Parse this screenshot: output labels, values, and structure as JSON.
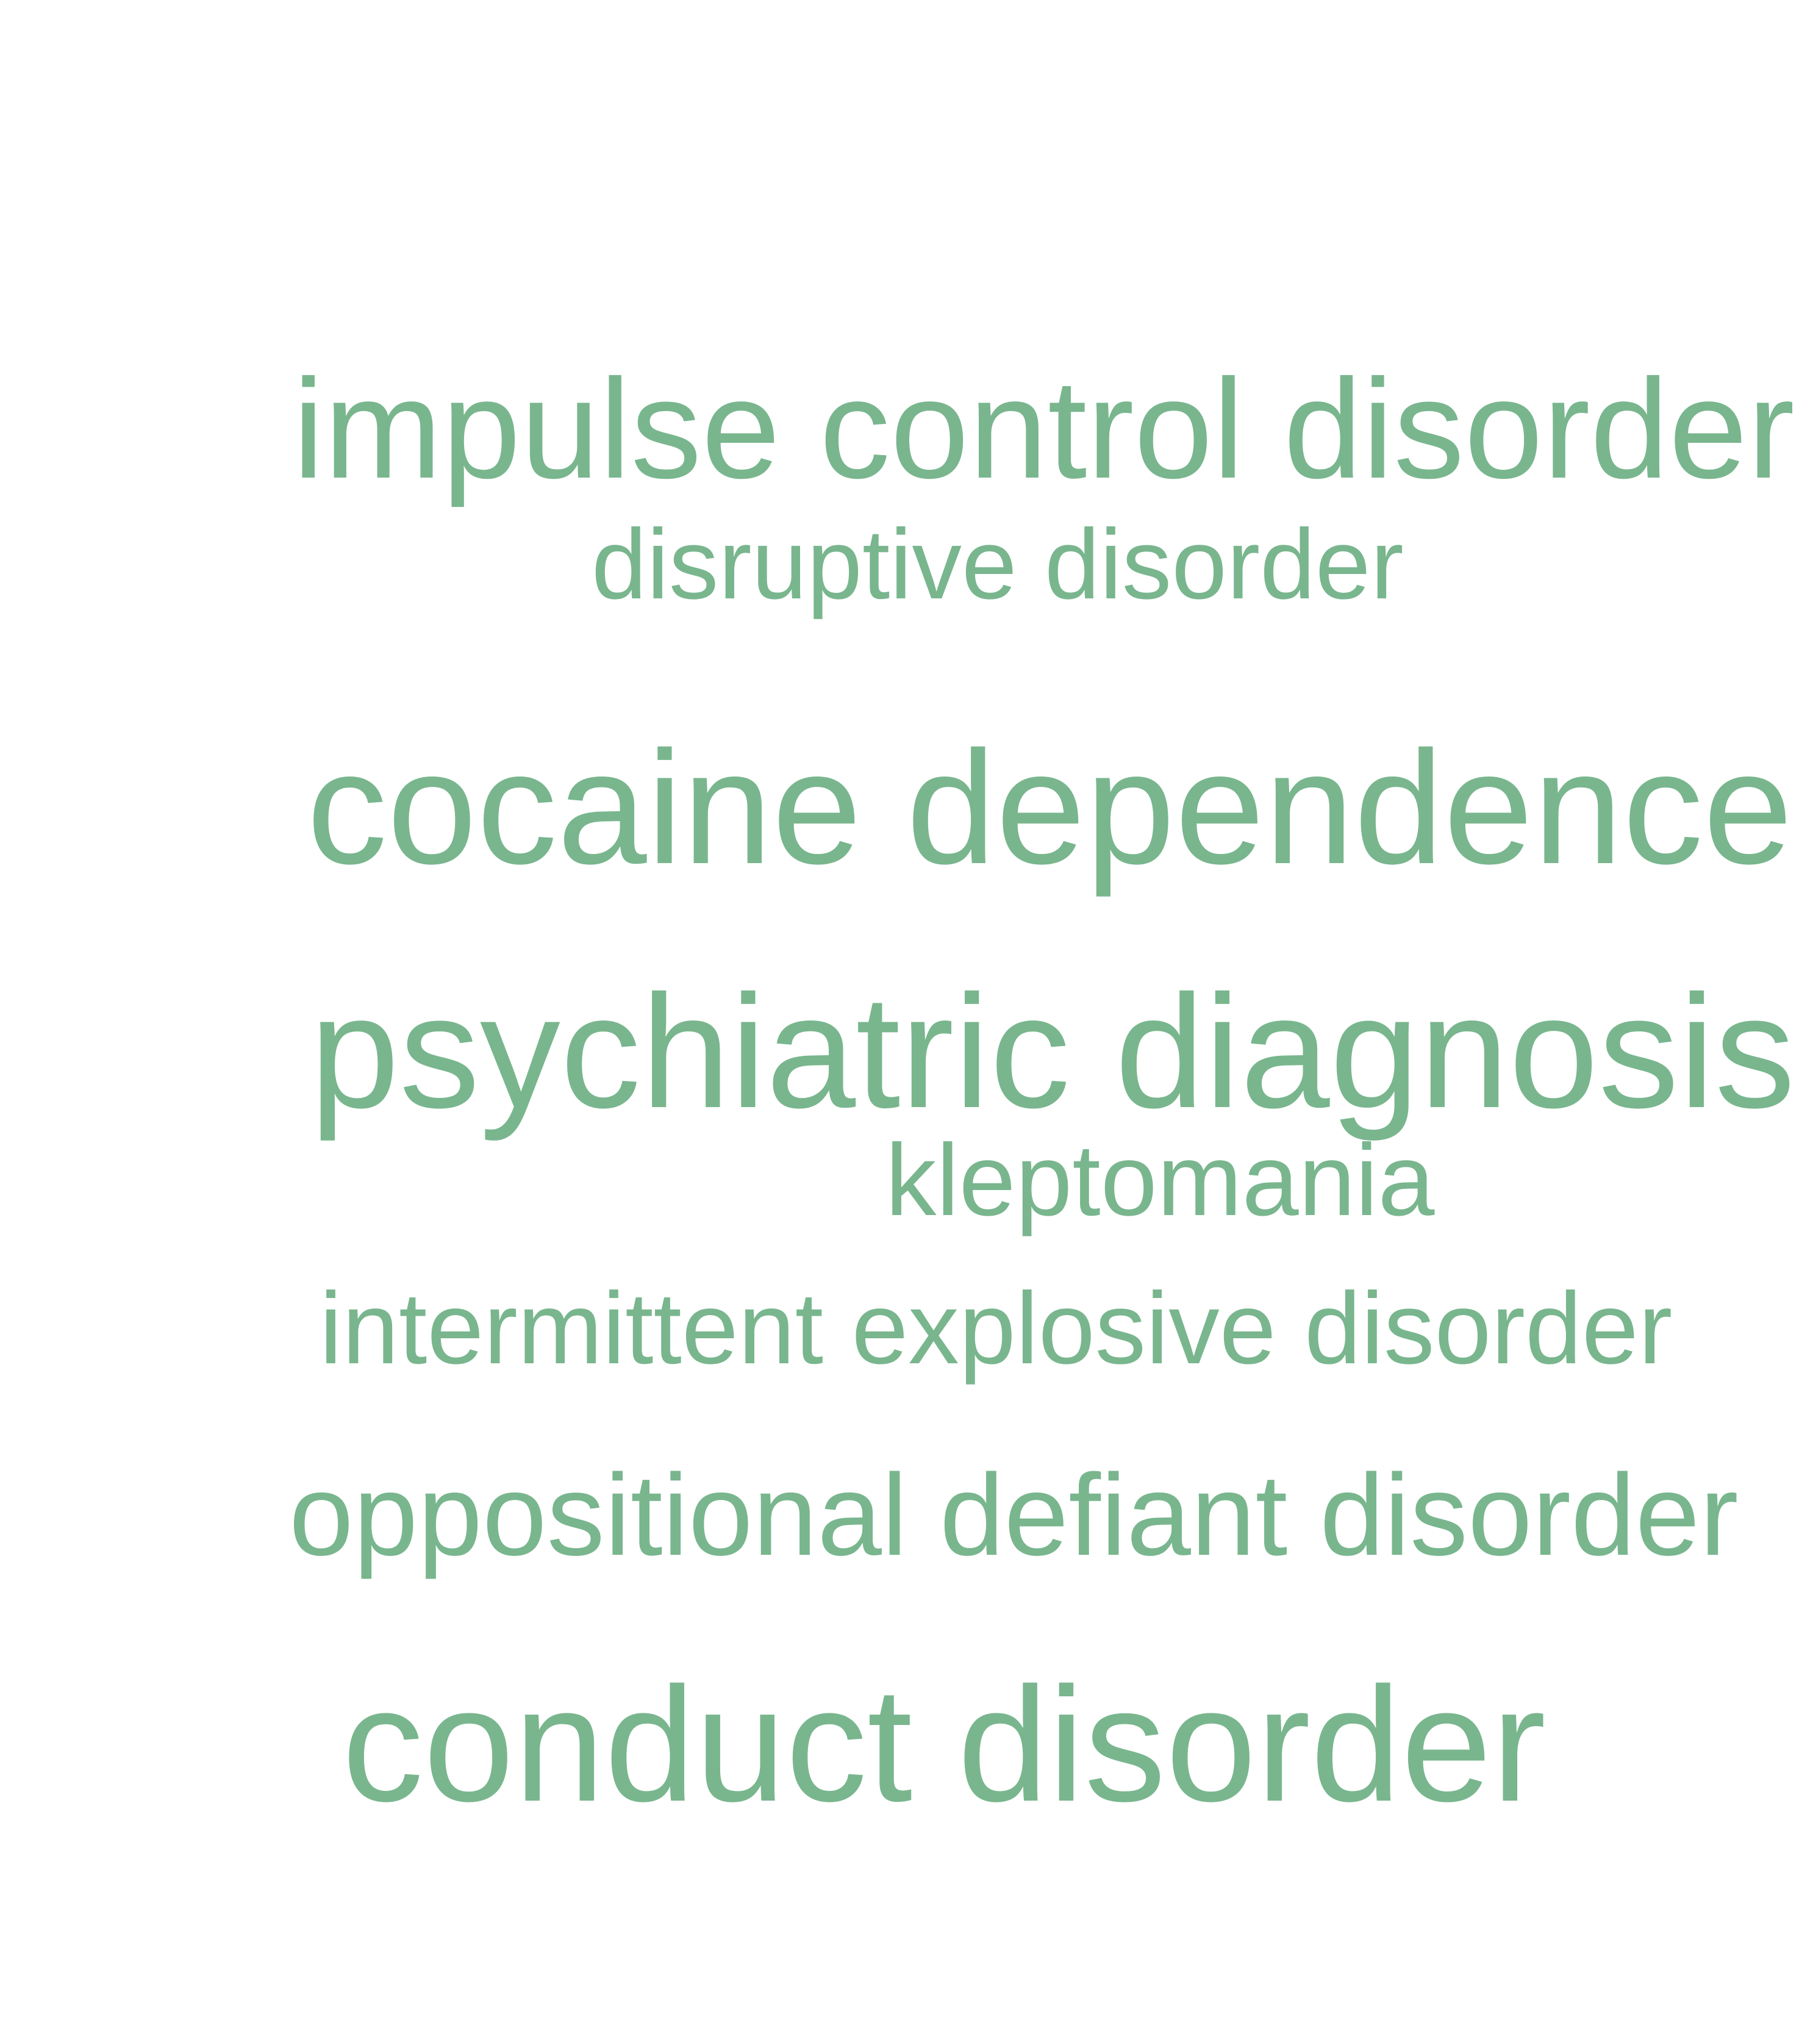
{
  "word_cloud": {
    "color": "#79b68e",
    "terms": {
      "impulse_control_disorder": "impulse control disorder",
      "disruptive_disorder": "disruptive disorder",
      "cocaine_dependence": "cocaine dependence",
      "psychiatric_diagnosis": "psychiatric diagnosis",
      "kleptomania": "kleptomania",
      "intermittent_explosive_disorder": "intermittent explosive disorder",
      "oppositional_defiant_disorder": "oppositional defiant disorder",
      "conduct_disorder": "conduct disorder"
    }
  }
}
